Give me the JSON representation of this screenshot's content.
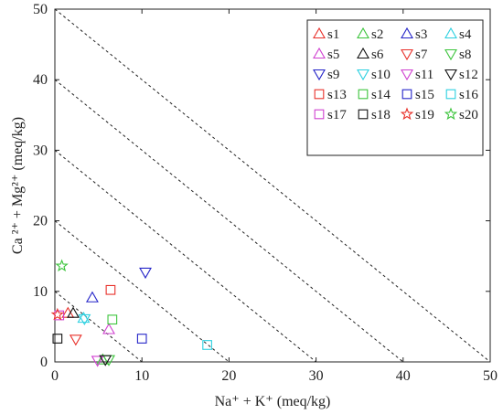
{
  "chart_data": {
    "type": "scatter",
    "xlabel": "Na⁺ + K⁺ (meq/kg)",
    "ylabel": "Ca ²⁺ + Mg²⁺ (meq/kg)",
    "xlim": [
      0,
      50
    ],
    "ylim": [
      0,
      50
    ],
    "xticks": [
      0,
      10,
      20,
      30,
      40,
      50
    ],
    "yticks": [
      0,
      10,
      20,
      30,
      40,
      50
    ],
    "grid": false,
    "legend_position": "top-right",
    "legend_columns": 4,
    "reference_lines": [
      {
        "style": "dotted",
        "constant_sum": 10
      },
      {
        "style": "dotted",
        "constant_sum": 20
      },
      {
        "style": "dotted",
        "constant_sum": 30
      },
      {
        "style": "dotted",
        "constant_sum": 40
      },
      {
        "style": "dotted",
        "constant_sum": 50
      }
    ],
    "series": [
      {
        "name": "s1",
        "marker": "triangle-up",
        "color": "#e8302a",
        "x": [
          1.5
        ],
        "y": [
          6.9
        ]
      },
      {
        "name": "s2",
        "marker": "triangle-up",
        "color": "#3cc43c",
        "x": [
          5.5
        ],
        "y": [
          0.3
        ]
      },
      {
        "name": "s3",
        "marker": "triangle-up",
        "color": "#2424c8",
        "x": [
          4.3
        ],
        "y": [
          9.1
        ]
      },
      {
        "name": "s4",
        "marker": "triangle-up",
        "color": "#2cd0e0",
        "x": [
          3.3
        ],
        "y": [
          6.2
        ]
      },
      {
        "name": "s5",
        "marker": "triangle-up",
        "color": "#d040d0",
        "x": [
          6.2
        ],
        "y": [
          4.6
        ]
      },
      {
        "name": "s6",
        "marker": "triangle-up",
        "color": "#111111",
        "x": [
          2.1
        ],
        "y": [
          6.9
        ]
      },
      {
        "name": "s7",
        "marker": "triangle-down",
        "color": "#e8302a",
        "x": [
          2.4
        ],
        "y": [
          3.2
        ]
      },
      {
        "name": "s8",
        "marker": "triangle-down",
        "color": "#3cc43c",
        "x": [
          6.2
        ],
        "y": [
          0.3
        ]
      },
      {
        "name": "s9",
        "marker": "triangle-down",
        "color": "#2424c8",
        "x": [
          10.4
        ],
        "y": [
          12.7
        ]
      },
      {
        "name": "s10",
        "marker": "triangle-down",
        "color": "#2cd0e0",
        "x": [
          3.4
        ],
        "y": [
          6.1
        ]
      },
      {
        "name": "s11",
        "marker": "triangle-down",
        "color": "#d040d0",
        "x": [
          4.9
        ],
        "y": [
          0.2
        ]
      },
      {
        "name": "s12",
        "marker": "triangle-down",
        "color": "#111111",
        "x": [
          5.8
        ],
        "y": [
          0.3
        ]
      },
      {
        "name": "s13",
        "marker": "square",
        "color": "#e8302a",
        "x": [
          6.4
        ],
        "y": [
          10.2
        ]
      },
      {
        "name": "s14",
        "marker": "square",
        "color": "#3cc43c",
        "x": [
          6.6
        ],
        "y": [
          6.0
        ]
      },
      {
        "name": "s15",
        "marker": "square",
        "color": "#2424c8",
        "x": [
          10.0
        ],
        "y": [
          3.3
        ]
      },
      {
        "name": "s16",
        "marker": "square",
        "color": "#2cd0e0",
        "x": [
          17.5
        ],
        "y": [
          2.4
        ]
      },
      {
        "name": "s17",
        "marker": "square",
        "color": "#d040d0",
        "x": [
          0.5
        ],
        "y": [
          6.6
        ]
      },
      {
        "name": "s18",
        "marker": "square",
        "color": "#111111",
        "x": [
          0.3
        ],
        "y": [
          3.3
        ]
      },
      {
        "name": "s19",
        "marker": "star",
        "color": "#e8302a",
        "x": [
          0.3
        ],
        "y": [
          6.7
        ]
      },
      {
        "name": "s20",
        "marker": "star",
        "color": "#3cc43c",
        "x": [
          0.8
        ],
        "y": [
          13.6
        ]
      }
    ]
  }
}
